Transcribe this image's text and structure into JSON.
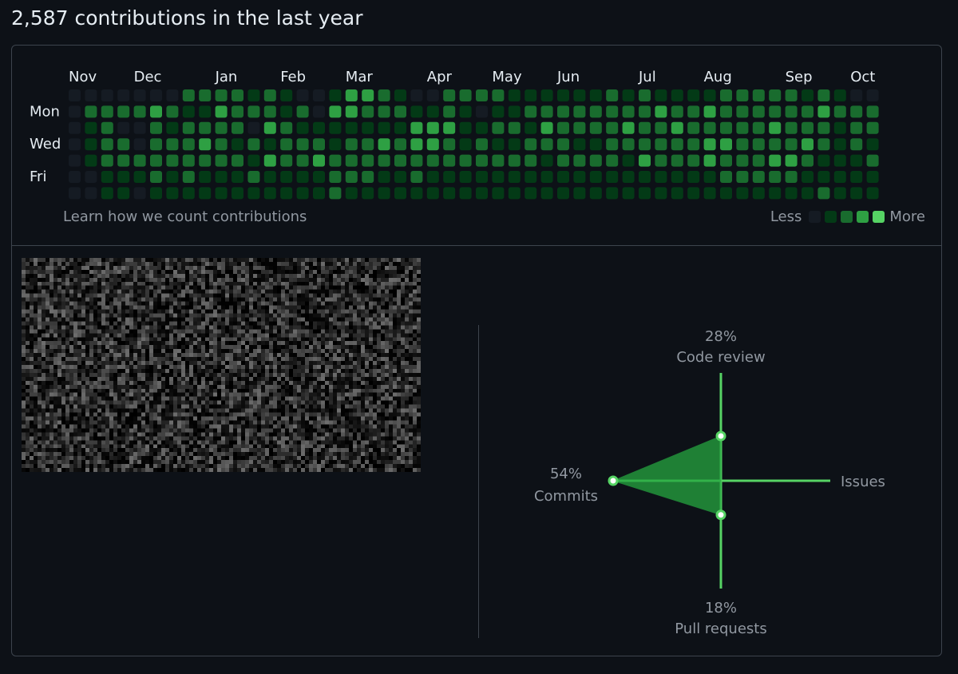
{
  "header": {
    "title": "2,587 contributions in the last year"
  },
  "calendar": {
    "months": [
      {
        "label": "Nov",
        "week": 0
      },
      {
        "label": "Dec",
        "week": 4
      },
      {
        "label": "Jan",
        "week": 9
      },
      {
        "label": "Feb",
        "week": 13
      },
      {
        "label": "Mar",
        "week": 17
      },
      {
        "label": "Apr",
        "week": 22
      },
      {
        "label": "May",
        "week": 26
      },
      {
        "label": "Jun",
        "week": 30
      },
      {
        "label": "Jul",
        "week": 35
      },
      {
        "label": "Aug",
        "week": 39
      },
      {
        "label": "Sep",
        "week": 44
      },
      {
        "label": "Oct",
        "week": 48
      }
    ],
    "days": [
      {
        "label": "Mon",
        "row": 1
      },
      {
        "label": "Wed",
        "row": 3
      },
      {
        "label": "Fri",
        "row": 5
      }
    ],
    "colors": [
      "#151b23",
      "#033a16",
      "#196c2e",
      "#2ea043",
      "#56d364"
    ],
    "levels": [
      "00000002222121001332100222211111121211112222212100",
      "02222321132221203322211210112222222232232222223222",
      "01200212222032111111133311221322223223222223222122",
      "01220222321212221223233212112221122222233222232121",
      "01222222222132232222222222222122221322232223321112",
      "00111212111211112221121111111111111111112222211111",
      "00110111111111112111111111111111111111111111112111"
    ],
    "learn_link": "Learn how we count contributions",
    "legend_less": "Less",
    "legend_more": "More"
  },
  "activity": {
    "commits": {
      "pct": "54%",
      "label": "Commits",
      "value": 54
    },
    "code_review": {
      "pct": "28%",
      "label": "Code review",
      "value": 28
    },
    "pull_requests": {
      "pct": "18%",
      "label": "Pull requests",
      "value": 18
    },
    "issues": {
      "label": "Issues",
      "value": 0
    },
    "line_color": "#56d364",
    "fill_color": "#26a641"
  }
}
